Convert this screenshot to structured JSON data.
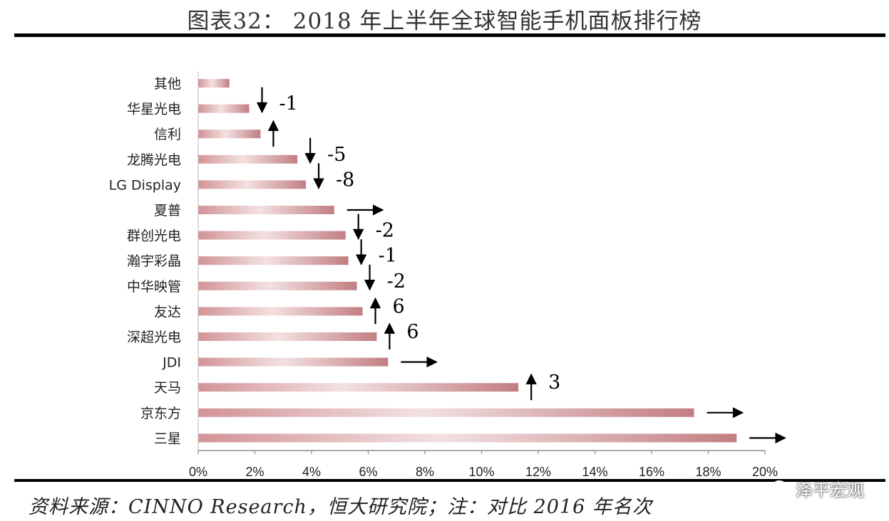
{
  "title": "图表32： 2018 年上半年全球智能手机面板排行榜",
  "source": "资料来源：CINNO Research，恒大研究院；注：对比 2016 年名次",
  "watermark": {
    "text": "泽平宏观",
    "icon": "wechat-icon"
  },
  "colors": {
    "bar": "#c98a8c",
    "bar_light": "#f3e1e2",
    "rule": "#000000"
  },
  "chart_data": {
    "type": "bar",
    "orientation": "horizontal",
    "categories": [
      "其他",
      "华星光电",
      "信利",
      "龙腾光电",
      "LG Display",
      "夏普",
      "群创光电",
      "瀚宇彩晶",
      "中华映管",
      "友达",
      "深超光电",
      "JDI",
      "天马",
      "京东方",
      "三星"
    ],
    "values": [
      1.1,
      1.8,
      2.2,
      3.5,
      3.8,
      4.8,
      5.2,
      5.3,
      5.6,
      5.8,
      6.3,
      6.7,
      11.3,
      17.5,
      19.0
    ],
    "ranking_change": [
      {
        "category": "其他",
        "direction": "none",
        "label": ""
      },
      {
        "category": "华星光电",
        "direction": "down",
        "label": "-1"
      },
      {
        "category": "信利",
        "direction": "up",
        "label": ""
      },
      {
        "category": "龙腾光电",
        "direction": "down",
        "label": "-5"
      },
      {
        "category": "LG Display",
        "direction": "down",
        "label": "-8"
      },
      {
        "category": "夏普",
        "direction": "same",
        "label": ""
      },
      {
        "category": "群创光电",
        "direction": "down",
        "label": "-2"
      },
      {
        "category": "瀚宇彩晶",
        "direction": "down",
        "label": "-1"
      },
      {
        "category": "中华映管",
        "direction": "down",
        "label": "-2"
      },
      {
        "category": "友达",
        "direction": "up",
        "label": "6"
      },
      {
        "category": "深超光电",
        "direction": "up",
        "label": "6"
      },
      {
        "category": "JDI",
        "direction": "same",
        "label": ""
      },
      {
        "category": "天马",
        "direction": "up",
        "label": "3"
      },
      {
        "category": "京东方",
        "direction": "same",
        "label": ""
      },
      {
        "category": "三星",
        "direction": "same",
        "label": ""
      }
    ],
    "xlim": [
      0,
      20
    ],
    "xticks": [
      "0%",
      "2%",
      "4%",
      "6%",
      "8%",
      "10%",
      "12%",
      "14%",
      "16%",
      "18%",
      "20%"
    ],
    "grid": false,
    "legend": "none"
  }
}
